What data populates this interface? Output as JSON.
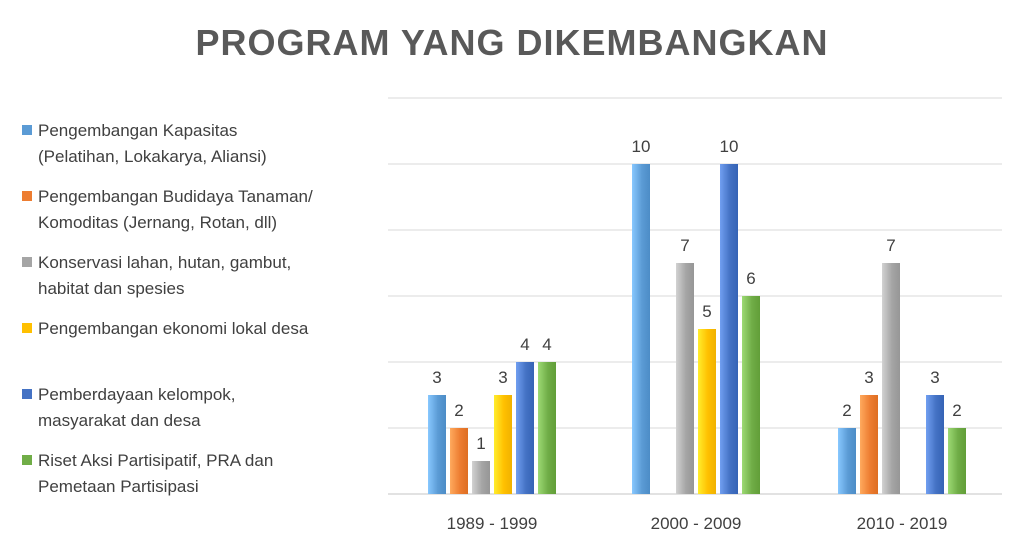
{
  "chart_data": {
    "type": "bar",
    "title": "PROGRAM YANG DIKEMBANGKAN",
    "categories": [
      "1989 - 1999",
      "2000 - 2009",
      "2010 - 2019"
    ],
    "series": [
      {
        "name": "Pengembangan Kapasitas\n(Pelatihan, Lokakarya, Aliansi)",
        "color": "#5B9BD5",
        "values": [
          3,
          10,
          2
        ]
      },
      {
        "name": "Pengembangan Budidaya Tanaman/\nKomoditas (Jernang, Rotan, dll)",
        "color": "#ED7D31",
        "values": [
          2,
          null,
          3
        ]
      },
      {
        "name": "Konservasi lahan, hutan, gambut,\nhabitat dan spesies",
        "color": "#A5A5A5",
        "values": [
          1,
          7,
          7
        ]
      },
      {
        "name": "Pengembangan ekonomi lokal desa",
        "color": "#FFC000",
        "values": [
          3,
          5,
          null
        ]
      },
      {
        "name": "Pemberdayaan kelompok,\nmasyarakat dan desa",
        "color": "#4472C4",
        "values": [
          4,
          10,
          3
        ]
      },
      {
        "name": "Riset Aksi Partisipatif, PRA dan\nPemetaan Partisipasi",
        "color": "#70AD47",
        "values": [
          4,
          6,
          2
        ]
      }
    ],
    "ylim": [
      0,
      12
    ],
    "grid": true,
    "legend_position": "left",
    "data_labels": true
  }
}
